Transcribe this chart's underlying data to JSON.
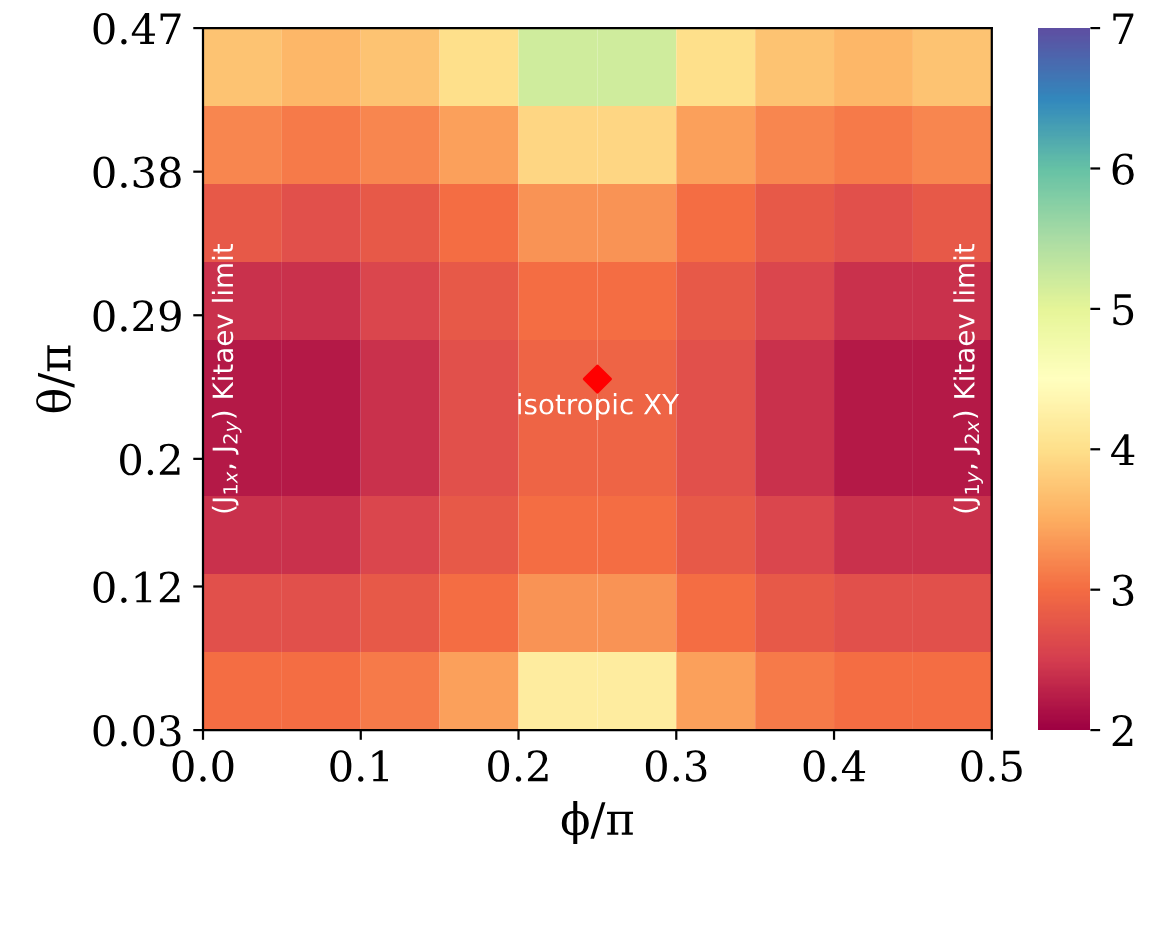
{
  "chart_data": {
    "type": "heatmap",
    "xlabel": "ϕ/π",
    "ylabel": "θ/π",
    "cells": [
      [
        3.7,
        3.6,
        3.7,
        4.0,
        5.2,
        5.2,
        4.0,
        3.7,
        3.6,
        3.7
      ],
      [
        3.2,
        3.1,
        3.2,
        3.4,
        3.9,
        3.9,
        3.4,
        3.2,
        3.1,
        3.2
      ],
      [
        2.8,
        2.7,
        2.8,
        3.0,
        3.3,
        3.3,
        3.0,
        2.8,
        2.7,
        2.8
      ],
      [
        2.4,
        2.4,
        2.6,
        2.8,
        3.0,
        3.0,
        2.8,
        2.6,
        2.4,
        2.4
      ],
      [
        2.2,
        2.2,
        2.4,
        2.7,
        2.9,
        2.9,
        2.7,
        2.4,
        2.2,
        2.2
      ],
      [
        2.2,
        2.2,
        2.4,
        2.7,
        2.9,
        2.9,
        2.7,
        2.4,
        2.2,
        2.2
      ],
      [
        2.4,
        2.4,
        2.6,
        2.8,
        3.0,
        3.0,
        2.8,
        2.6,
        2.4,
        2.4
      ],
      [
        2.7,
        2.7,
        2.8,
        3.0,
        3.3,
        3.3,
        3.0,
        2.8,
        2.7,
        2.7
      ],
      [
        3.0,
        3.0,
        3.1,
        3.4,
        4.2,
        4.2,
        3.4,
        3.1,
        3.0,
        3.0
      ]
    ],
    "clim": [
      2,
      7
    ],
    "cticks": [
      2,
      3,
      4,
      5,
      6,
      7
    ],
    "xlim": [
      0,
      0.5
    ],
    "xticks": [
      {
        "value": 0,
        "label": "0.0"
      },
      0.1,
      0.2,
      0.3,
      0.4,
      0.5
    ],
    "ylim": [
      0.03,
      0.47
    ],
    "yticks": [
      0.03,
      0.12,
      0.2,
      0.29,
      0.38,
      0.47
    ],
    "series": [
      {
        "type": "scatter",
        "color": "#ff0000",
        "marker": "diamond",
        "x": [
          0.25
        ],
        "values": [
          0.25
        ]
      }
    ],
    "annotations": [
      "isotropic XY",
      "(J$_{1x}$, J$_{2y}$) Kitaev limit",
      "(J$_{1y}$, J$_{2x}$) Kitaev limit"
    ]
  }
}
